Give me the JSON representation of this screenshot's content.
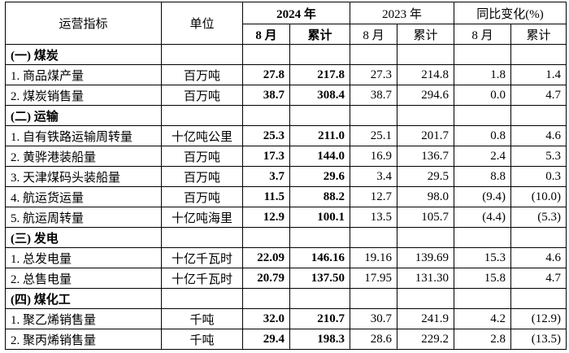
{
  "header": {
    "indicator": "运营指标",
    "unit": "单位",
    "year_2024": "2024 年",
    "year_2023": "2023 年",
    "yoy": "同比变化(%)",
    "sub": [
      "8 月",
      "累计",
      "8 月",
      "累计",
      "8 月",
      "累计"
    ]
  },
  "sections": [
    {
      "title": "(一) 煤炭",
      "rows": [
        [
          "1. 商品煤产量",
          "百万吨",
          "27.8",
          "217.8",
          "27.3",
          "214.8",
          "1.8",
          "1.4"
        ],
        [
          "2. 煤炭销售量",
          "百万吨",
          "38.7",
          "308.4",
          "38.7",
          "294.6",
          "0.0",
          "4.7"
        ]
      ]
    },
    {
      "title": "(二) 运输",
      "rows": [
        [
          "1. 自有铁路运输周转量",
          "十亿吨公里",
          "25.3",
          "211.0",
          "25.1",
          "201.7",
          "0.8",
          "4.6"
        ],
        [
          "2. 黄骅港装船量",
          "百万吨",
          "17.3",
          "144.0",
          "16.9",
          "136.7",
          "2.4",
          "5.3"
        ],
        [
          "3. 天津煤码头装船量",
          "百万吨",
          "3.7",
          "29.6",
          "3.4",
          "29.5",
          "8.8",
          "0.3"
        ],
        [
          "4. 航运货运量",
          "百万吨",
          "11.5",
          "88.2",
          "12.7",
          "98.0",
          "(9.4)",
          "(10.0)"
        ],
        [
          "5. 航运周转量",
          "十亿吨海里",
          "12.9",
          "100.1",
          "13.5",
          "105.7",
          "(4.4)",
          "(5.3)"
        ]
      ]
    },
    {
      "title": "(三) 发电",
      "rows": [
        [
          "1. 总发电量",
          "十亿千瓦时",
          "22.09",
          "146.16",
          "19.16",
          "139.69",
          "15.3",
          "4.6"
        ],
        [
          "2. 总售电量",
          "十亿千瓦时",
          "20.79",
          "137.50",
          "17.95",
          "131.30",
          "15.8",
          "4.7"
        ]
      ]
    },
    {
      "title": "(四) 煤化工",
      "rows": [
        [
          "1. 聚乙烯销售量",
          "千吨",
          "32.0",
          "210.7",
          "30.7",
          "241.9",
          "4.2",
          "(12.9)"
        ],
        [
          "2. 聚丙烯销售量",
          "千吨",
          "29.4",
          "198.3",
          "28.6",
          "229.2",
          "2.8",
          "(13.5)"
        ]
      ]
    }
  ]
}
